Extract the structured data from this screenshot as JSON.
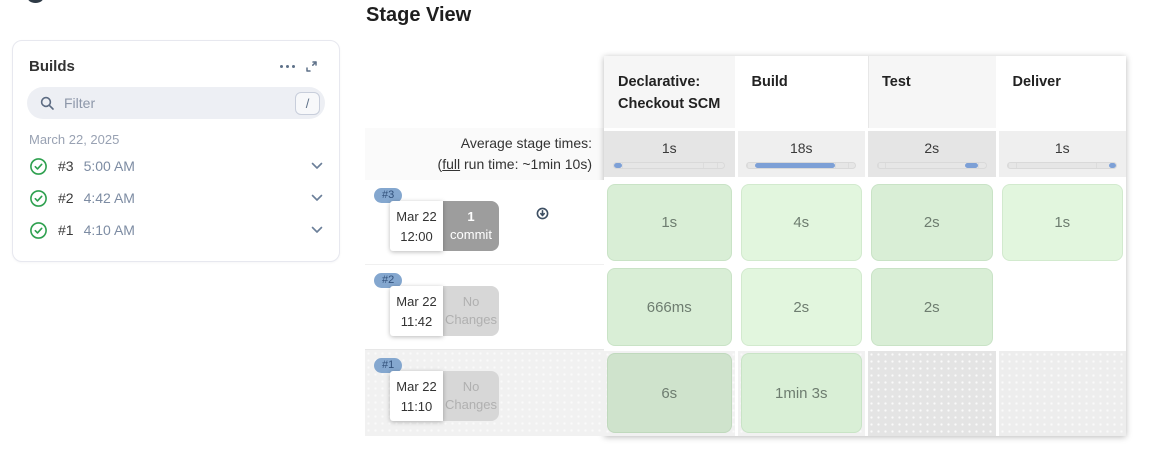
{
  "builds_panel": {
    "title": "Builds",
    "filter": {
      "placeholder": "Filter",
      "shortcut": "/"
    },
    "date_group": "March 22, 2025",
    "builds": [
      {
        "id": "#3",
        "time": "5:00 AM",
        "status": "success"
      },
      {
        "id": "#2",
        "time": "4:42 AM",
        "status": "success"
      },
      {
        "id": "#1",
        "time": "4:10 AM",
        "status": "success"
      }
    ]
  },
  "stage_view": {
    "title": "Stage View",
    "columns": [
      "Declarative: Checkout SCM",
      "Build",
      "Test",
      "Deliver"
    ],
    "average": {
      "label": "Average stage times:",
      "run_prefix": "(",
      "run_link": "full",
      "run_suffix": " run time: ~1min 10s)",
      "times": [
        "1s",
        "18s",
        "2s",
        "1s"
      ],
      "bar_segments": [
        [
          0,
          7
        ],
        [
          7,
          74
        ],
        [
          81,
          12
        ],
        [
          93,
          7
        ]
      ]
    },
    "rows": [
      {
        "badge": "#3",
        "date": "Mar 22",
        "time": "12:00",
        "changes": {
          "line1": "1",
          "line2": "commit",
          "type": "commit"
        },
        "cells": [
          {
            "text": "1s",
            "status": "success"
          },
          {
            "text": "4s",
            "status": "success"
          },
          {
            "text": "2s",
            "status": "success"
          },
          {
            "text": "1s",
            "status": "success"
          }
        ]
      },
      {
        "badge": "#2",
        "date": "Mar 22",
        "time": "11:42",
        "changes": {
          "line1": "No",
          "line2": "Changes",
          "type": "none"
        },
        "cells": [
          {
            "text": "666ms",
            "status": "success"
          },
          {
            "text": "2s",
            "status": "success"
          },
          {
            "text": "2s",
            "status": "success"
          },
          {
            "text": "",
            "status": "not-run-white"
          }
        ]
      },
      {
        "badge": "#1",
        "date": "Mar 22",
        "time": "11:10",
        "changes": {
          "line1": "No",
          "line2": "Changes",
          "type": "none"
        },
        "cells": [
          {
            "text": "6s",
            "status": "success"
          },
          {
            "text": "1min 3s",
            "status": "success"
          },
          {
            "text": "",
            "status": "not-run-gray"
          },
          {
            "text": "",
            "status": "not-run-gray"
          }
        ]
      }
    ]
  },
  "colors": {
    "accent_blue": "#7da0d6",
    "badge_blue": "#84a7cf",
    "success_green": "#2ea04f",
    "cell_green_light": "#e2f6de",
    "cell_green_dark": "#d9eed6",
    "not_run_gray": "#e4e4e4"
  }
}
